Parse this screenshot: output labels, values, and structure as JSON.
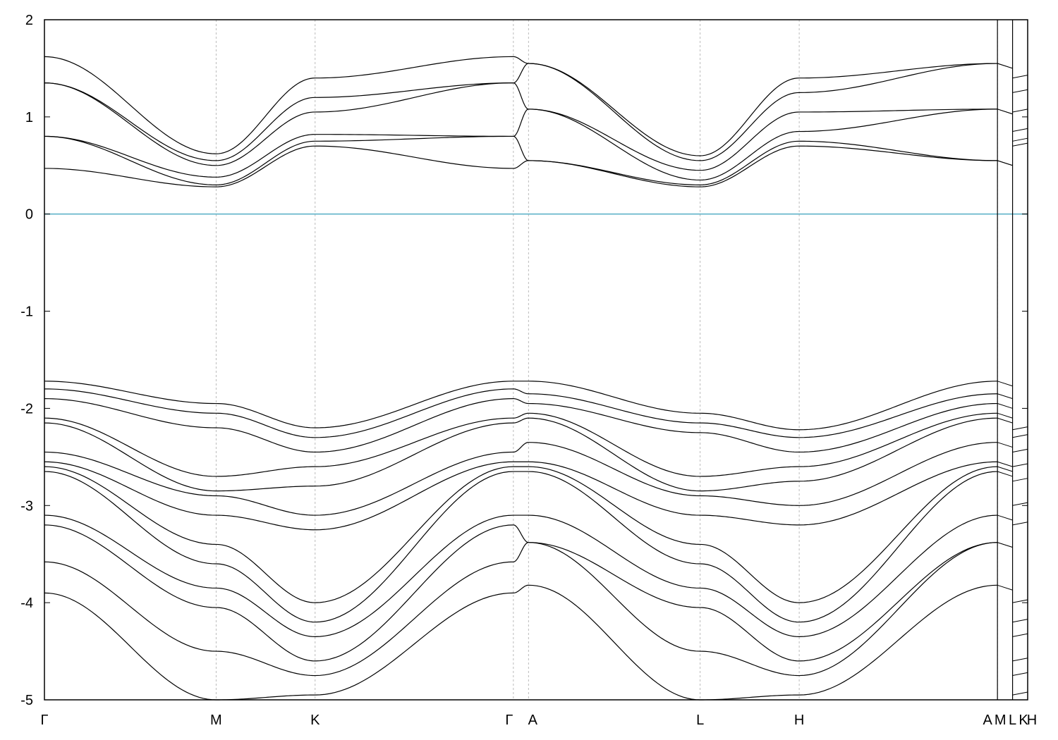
{
  "chart_data": {
    "type": "line",
    "title": "",
    "xlabel": "",
    "ylabel": "",
    "ylim": [
      -5,
      2
    ],
    "y_ticks": [
      "2",
      "1",
      "0",
      "-1",
      "-2",
      "-3",
      "-4",
      "-5"
    ],
    "x_path": [
      {
        "label": "Γ",
        "pos": 0.0
      },
      {
        "label": "M",
        "pos": 1.0
      },
      {
        "label": "K",
        "pos": 1.577
      },
      {
        "label": "Γ",
        "pos": 2.732
      },
      {
        "label": "A",
        "pos": 2.82
      },
      {
        "label": "L",
        "pos": 3.82
      },
      {
        "label": "H",
        "pos": 4.397
      },
      {
        "label": "A",
        "pos": 5.552
      },
      {
        "label": "M",
        "pos": 5.552
      },
      {
        "label": "L",
        "pos": 5.64
      },
      {
        "label": "K",
        "pos": 5.728
      },
      {
        "label": "H",
        "pos": 5.728
      }
    ],
    "x_range": [
      0,
      5.728
    ],
    "panel_breaks": [
      5.552,
      5.728
    ],
    "fermi_level": 0,
    "fermi_color": "#5fb3c8",
    "grid": "vertical dashed at high-symmetry points",
    "series": [
      {
        "values_sample": {
          "Γ": 1.62,
          "M": 0.62,
          "K": 1.4,
          "Γ'": 1.62,
          "A": 1.55,
          "L": 0.6,
          "H": 1.4,
          "A'": 1.55
        }
      },
      {
        "values_sample": {
          "Γ": 1.35,
          "M": 0.55,
          "K": 1.2,
          "Γ'": 1.35,
          "A": 1.55,
          "L": 0.55,
          "H": 1.25,
          "A'": 1.55
        }
      },
      {
        "values_sample": {
          "Γ": 1.35,
          "M": 0.5,
          "K": 1.05,
          "Γ'": 1.35,
          "A": 1.08,
          "L": 0.45,
          "H": 1.05,
          "A'": 1.08
        }
      },
      {
        "values_sample": {
          "Γ": 0.8,
          "M": 0.38,
          "K": 0.82,
          "Γ'": 0.8,
          "A": 1.08,
          "L": 0.35,
          "H": 0.85,
          "A'": 1.08
        }
      },
      {
        "values_sample": {
          "Γ": 0.8,
          "M": 0.3,
          "K": 0.75,
          "Γ'": 0.8,
          "A": 0.55,
          "L": 0.3,
          "H": 0.75,
          "A'": 0.55
        }
      },
      {
        "values_sample": {
          "Γ": 0.47,
          "M": 0.28,
          "K": 0.7,
          "Γ'": 0.47,
          "A": 0.55,
          "L": 0.28,
          "H": 0.7,
          "A'": 0.55
        }
      },
      {
        "values_sample": {
          "Γ": -1.72,
          "M": -1.95,
          "K": -2.2,
          "Γ'": -1.72,
          "A": -1.72,
          "L": -2.05,
          "H": -2.22,
          "A'": -1.72
        }
      },
      {
        "values_sample": {
          "Γ": -1.8,
          "M": -2.05,
          "K": -2.3,
          "Γ'": -1.8,
          "A": -1.85,
          "L": -2.15,
          "H": -2.3,
          "A'": -1.85
        }
      },
      {
        "values_sample": {
          "Γ": -1.9,
          "M": -2.2,
          "K": -2.45,
          "Γ'": -1.9,
          "A": -1.95,
          "L": -2.25,
          "H": -2.45,
          "A'": -1.95
        }
      },
      {
        "values_sample": {
          "Γ": -2.1,
          "M": -2.7,
          "K": -2.6,
          "Γ'": -2.1,
          "A": -2.05,
          "L": -2.7,
          "H": -2.6,
          "A'": -2.05
        }
      },
      {
        "values_sample": {
          "Γ": -2.15,
          "M": -2.85,
          "K": -2.8,
          "Γ'": -2.15,
          "A": -2.1,
          "L": -2.85,
          "H": -2.75,
          "A'": -2.1
        }
      },
      {
        "values_sample": {
          "Γ": -2.45,
          "M": -2.9,
          "K": -3.1,
          "Γ'": -2.45,
          "A": -2.35,
          "L": -2.9,
          "H": -3.0,
          "A'": -2.35
        }
      },
      {
        "values_sample": {
          "Γ": -2.55,
          "M": -3.1,
          "K": -3.25,
          "Γ'": -2.55,
          "A": -2.55,
          "L": -3.1,
          "H": -3.2,
          "A'": -2.55
        }
      },
      {
        "values_sample": {
          "Γ": -2.6,
          "M": -3.4,
          "K": -4.0,
          "Γ'": -2.6,
          "A": -2.6,
          "L": -3.4,
          "H": -4.0,
          "A'": -2.6
        }
      },
      {
        "values_sample": {
          "Γ": -2.65,
          "M": -3.6,
          "K": -4.2,
          "Γ'": -2.65,
          "A": -2.65,
          "L": -3.6,
          "H": -4.2,
          "A'": -2.65
        }
      },
      {
        "values_sample": {
          "Γ": -3.1,
          "M": -3.85,
          "K": -4.35,
          "Γ'": -3.1,
          "A": -3.1,
          "L": -3.85,
          "H": -4.35,
          "A'": -3.1
        }
      },
      {
        "values_sample": {
          "Γ": -3.2,
          "M": -4.05,
          "K": -4.6,
          "Γ'": -3.2,
          "A": -3.38,
          "L": -4.05,
          "H": -4.6,
          "A'": -3.38
        }
      },
      {
        "values_sample": {
          "Γ": -3.58,
          "M": -4.5,
          "K": -4.75,
          "Γ'": -3.58,
          "A": -3.38,
          "L": -4.5,
          "H": -4.75,
          "A'": -3.38
        }
      },
      {
        "values_sample": {
          "Γ": -3.9,
          "M": -5.0,
          "K": -4.95,
          "Γ'": -3.9,
          "A": -3.82,
          "L": -5.0,
          "H": -4.95,
          "A'": -3.82
        }
      }
    ]
  }
}
